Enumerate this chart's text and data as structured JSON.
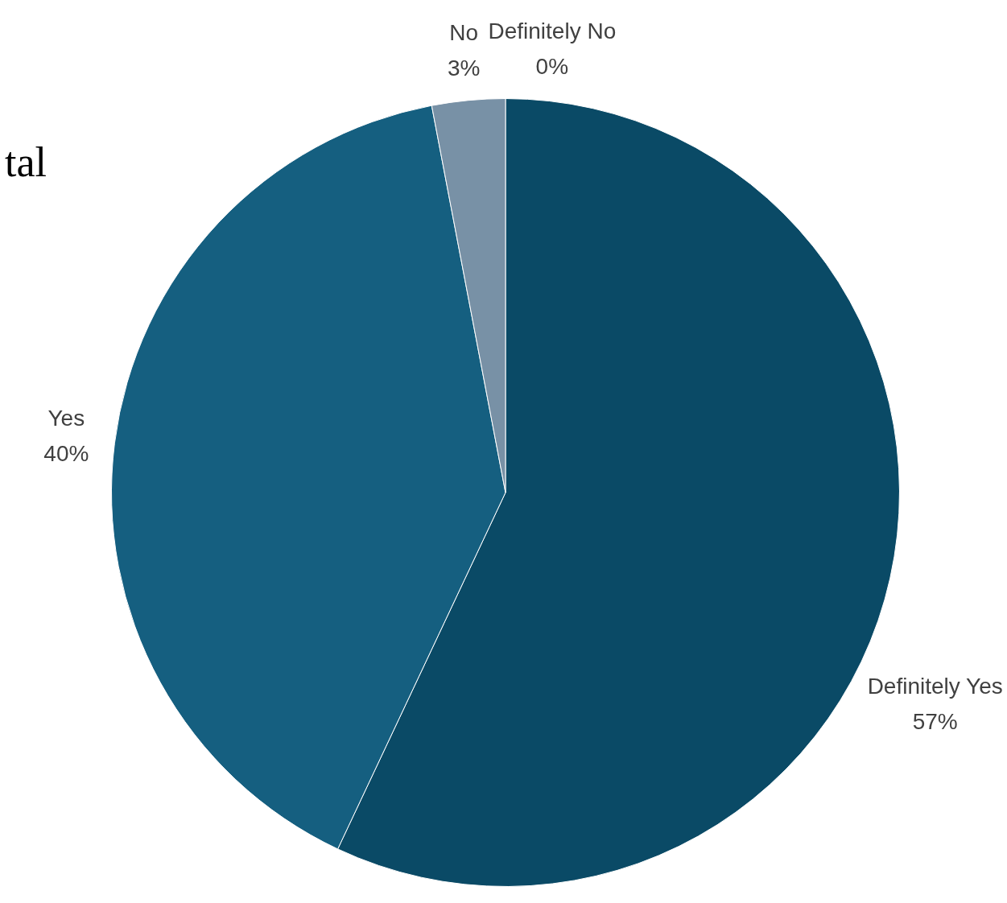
{
  "chart_data": {
    "type": "pie",
    "categories": [
      "Definitely Yes",
      "Yes",
      "No",
      "Definitely No"
    ],
    "values": [
      57,
      40,
      3,
      0
    ],
    "colors": [
      "#0a4a66",
      "#155f80",
      "#7891a6",
      "#4a6478"
    ],
    "value_labels": [
      "57%",
      "40%",
      "3%",
      "0%"
    ],
    "annotations": [
      "tal"
    ],
    "legend": false
  }
}
